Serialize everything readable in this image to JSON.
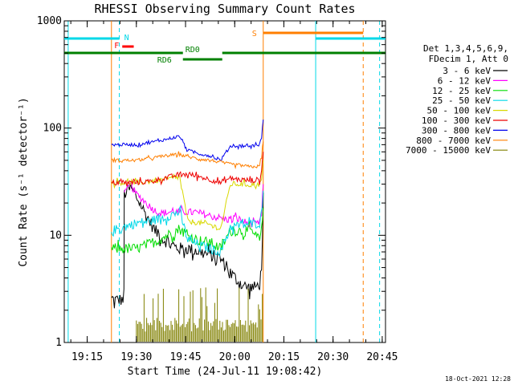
{
  "chart_data": {
    "type": "line",
    "title": "RHESSI Observing Summary Count Rates",
    "xlabel": "Start Time (24-Jul-11 19:08:42)",
    "ylabel": "Count Rate (s⁻¹ detector⁻¹)",
    "yscale": "log",
    "xlim_minutes": [
      -0.7,
      97.3
    ],
    "ylim": [
      1,
      1000
    ],
    "x_unit": "minutes after 19:08:42",
    "x_ticks": [
      {
        "label": "19:15",
        "x": 6.3
      },
      {
        "label": "19:30",
        "x": 21.3
      },
      {
        "label": "19:45",
        "x": 36.3
      },
      {
        "label": "20:00",
        "x": 51.3
      },
      {
        "label": "20:15",
        "x": 66.3
      },
      {
        "label": "20:30",
        "x": 81.3
      },
      {
        "label": "20:45",
        "x": 96.3
      }
    ],
    "y_ticks": [
      {
        "label": "1",
        "y": 1
      },
      {
        "label": "10",
        "y": 10
      },
      {
        "label": "100",
        "y": 100
      },
      {
        "label": "1000",
        "y": 1000
      }
    ],
    "legend_header": [
      "Det 1,3,4,5,6,9,",
      "FDecim 1, Att 0"
    ],
    "legend_position": "right",
    "series": [
      {
        "name": "3 - 6 keV",
        "color": "#000000",
        "noise": 0.06,
        "x": [
          13.7,
          17.5,
          17.6,
          19.5,
          21.3,
          24,
          27,
          30,
          32,
          34.5,
          37,
          40.5,
          44,
          47,
          50,
          53,
          55,
          57,
          58.9,
          59.5,
          60
        ],
        "values": [
          2.5,
          2.5,
          24,
          28,
          23,
          16,
          11,
          9,
          8,
          7.5,
          7.5,
          7,
          6.5,
          6,
          4.5,
          3.5,
          3.3,
          3.2,
          3.5,
          5,
          25
        ]
      },
      {
        "name": "6 - 12 keV",
        "color": "#ff00ff",
        "noise": 0.035,
        "x": [
          17.6,
          19.5,
          21.3,
          23,
          25,
          27,
          29,
          31.5,
          34.5,
          37,
          41,
          44.5,
          47,
          49,
          51,
          53,
          55,
          57,
          58.9,
          59.5,
          60
        ],
        "values": [
          24,
          30,
          24,
          22,
          19,
          17,
          16,
          16.5,
          16.5,
          16.5,
          16,
          15,
          14.5,
          14,
          14.5,
          14,
          13,
          12.5,
          13,
          16,
          30
        ]
      },
      {
        "name": "12 - 25 keV",
        "color": "#00dd00",
        "noise": 0.05,
        "x": [
          13.7,
          21.3,
          24,
          28,
          32,
          34.5,
          37,
          40,
          44,
          47,
          50,
          53,
          56,
          58.9,
          59.5,
          60
        ],
        "values": [
          7.5,
          7.5,
          8,
          9,
          10.5,
          11.5,
          10,
          9,
          8.5,
          7.5,
          11,
          11,
          11,
          9,
          11,
          18
        ]
      },
      {
        "name": "25 - 50 keV",
        "color": "#00d8e8",
        "noise": 0.045,
        "x": [
          13.7,
          21.3,
          25,
          29,
          32,
          34.5,
          37,
          41,
          44,
          47,
          50,
          54,
          58.9,
          59.5,
          60
        ],
        "values": [
          11,
          13,
          13.5,
          14.5,
          15.5,
          16.5,
          9,
          8,
          7.5,
          7,
          12,
          12.5,
          13,
          16,
          26
        ]
      },
      {
        "name": "50 - 100 keV",
        "color": "#d8d800",
        "noise": 0.025,
        "x": [
          13.7,
          21.3,
          26,
          30,
          34.5,
          37,
          41,
          44,
          47,
          50,
          53,
          56,
          58.9,
          59.5,
          60
        ],
        "values": [
          31,
          31,
          32,
          33,
          35,
          13.5,
          13,
          12.5,
          11.5,
          30,
          30,
          29.5,
          30,
          33,
          50
        ]
      },
      {
        "name": "100 - 300 keV",
        "color": "#ee0000",
        "noise": 0.025,
        "x": [
          13.7,
          21.3,
          26,
          30,
          34.5,
          37,
          41,
          44,
          47,
          50,
          53,
          56,
          58.9,
          59.5,
          60
        ],
        "values": [
          31,
          31,
          32,
          34,
          37,
          37,
          35,
          33,
          31,
          34,
          33,
          32.5,
          33,
          40,
          60
        ]
      },
      {
        "name": "300 - 800 keV",
        "color": "#0000ee",
        "noise": 0.015,
        "x": [
          13.7,
          21.3,
          25,
          30,
          34.5,
          37,
          40,
          44,
          47,
          50,
          53,
          56,
          58.9,
          59.5,
          60
        ],
        "values": [
          70,
          70,
          73,
          78,
          84,
          62,
          58,
          55,
          50,
          68,
          68,
          68,
          70,
          85,
          120
        ]
      },
      {
        "name": "800 - 7000 keV",
        "color": "#ff7f00",
        "noise": 0.015,
        "x": [
          13.7,
          21.3,
          25,
          30,
          34.5,
          37,
          40,
          44,
          47,
          50,
          53,
          56,
          58.9,
          59.5,
          60
        ],
        "values": [
          50,
          50,
          52,
          55,
          57,
          54,
          52,
          50,
          48,
          46,
          45,
          43.5,
          44,
          55,
          75
        ]
      },
      {
        "name": "7000 - 15000 keV",
        "color": "#808000",
        "noise": 0.0,
        "x": [
          21.3,
          60
        ],
        "values": [
          1.4,
          1.4
        ]
      }
    ],
    "flag_bars": [
      {
        "label": "N",
        "color": "#00d8e8",
        "x_start": -0.7,
        "x_end": 16.1,
        "level": "top"
      },
      {
        "label": "",
        "color": "#00d8e8",
        "x_start": 76,
        "x_end": 97.3,
        "level": "top"
      },
      {
        "label": "F",
        "color": "#ff0000",
        "x_start": 17,
        "x_end": 20.5,
        "level": "f"
      },
      {
        "label": "S",
        "color": "#ff7f00",
        "x_start": 60,
        "x_end": 90.5,
        "level": "s"
      },
      {
        "label": "RD0",
        "color": "#008000",
        "x_start": -0.7,
        "x_end": 97.3,
        "level": "rd0",
        "gap": [
          35.5,
          47.5
        ]
      },
      {
        "label": "RD6",
        "color": "#008000",
        "x_start": 35.5,
        "x_end": 47.5,
        "level": "rd6"
      }
    ],
    "markers": [
      {
        "x": 0.5,
        "color": "#00d8e8",
        "dashed": false
      },
      {
        "x": 16.1,
        "color": "#00d8e8",
        "dashed": true
      },
      {
        "x": 13.7,
        "color": "#ff7f00",
        "dashed": false
      },
      {
        "x": 60,
        "color": "#ff7f00",
        "dashed": false
      },
      {
        "x": 76,
        "color": "#00d8e8",
        "dashed": false
      },
      {
        "x": 90.5,
        "color": "#ff7f00",
        "dashed": true
      },
      {
        "x": 95.5,
        "color": "#00d8e8",
        "dashed": true
      }
    ],
    "footer_date": "18-Oct-2021 12:28"
  }
}
